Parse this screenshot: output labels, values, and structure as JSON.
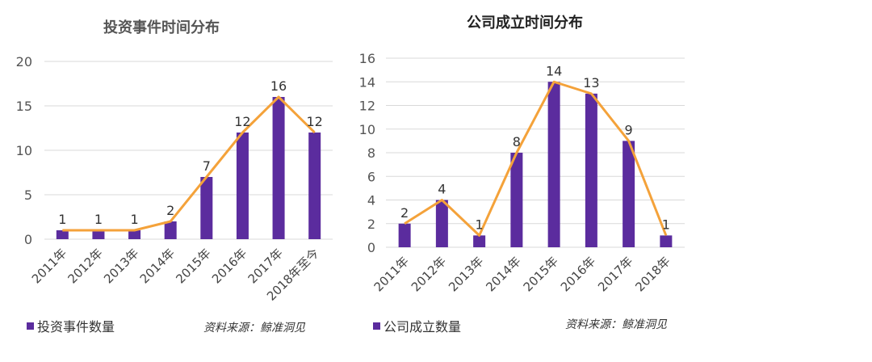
{
  "chart_data": [
    {
      "type": "bar",
      "title": "投资事件时间分布",
      "categories": [
        "2011年",
        "2012年",
        "2013年",
        "2014年",
        "2015年",
        "2016年",
        "2017年",
        "2018年至今"
      ],
      "series": [
        {
          "name": "投资事件数量",
          "values": [
            1,
            1,
            1,
            2,
            7,
            12,
            16,
            12
          ]
        }
      ],
      "overlay_line": "same values drawn as orange line",
      "ylim": [
        0,
        20
      ],
      "yticks": [
        0,
        5,
        10,
        15,
        20
      ],
      "legend": "bottom-left",
      "source": "资料来源：鲸准洞见",
      "bar_color": "#5b2c9e",
      "line_color": "#f4a23a"
    },
    {
      "type": "bar",
      "title": "公司成立时间分布",
      "categories": [
        "2011年",
        "2012年",
        "2013年",
        "2014年",
        "2015年",
        "2016年",
        "2017年",
        "2018年"
      ],
      "series": [
        {
          "name": "公司成立数量",
          "values": [
            2,
            4,
            1,
            8,
            14,
            13,
            9,
            1
          ]
        }
      ],
      "overlay_line": "same values drawn as orange line",
      "ylim": [
        0,
        16
      ],
      "yticks": [
        0,
        2,
        4,
        6,
        8,
        10,
        12,
        14,
        16
      ],
      "legend": "bottom-left",
      "source": "资料来源：鲸准洞见",
      "bar_color": "#5b2c9e",
      "line_color": "#f4a23a"
    }
  ]
}
